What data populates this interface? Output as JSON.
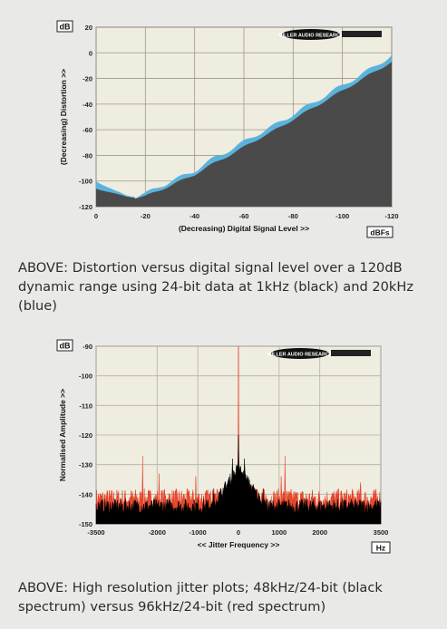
{
  "chart_data": [
    {
      "type": "area",
      "xlabel": "(Decreasing) Digital Signal Level >>",
      "ylabel": "(Decreasing) Distortion >>",
      "y_unit": "dB",
      "x_unit": "dBFs",
      "xlim": [
        0,
        -120
      ],
      "ylim": [
        -120,
        20
      ],
      "x_ticks": [
        "0",
        "-20",
        "-40",
        "-60",
        "-80",
        "-100",
        "-120"
      ],
      "y_ticks": [
        "20",
        "0",
        "-20",
        "-40",
        "-60",
        "-80",
        "-100",
        "-120"
      ],
      "logo_text": "MILLER AUDIO RESEARCH",
      "grid": true,
      "series": [
        {
          "color": "#5bb3dc",
          "x": [
            0,
            -4,
            -8,
            -12,
            -16,
            -20,
            -26,
            -32,
            -40,
            -48,
            -56,
            -64,
            -72,
            -80,
            -88,
            -96,
            -104,
            -112,
            -120
          ],
          "y": [
            -100,
            -104,
            -108,
            -111,
            -112,
            -110,
            -104,
            -99,
            -92,
            -82,
            -74,
            -65,
            -57,
            -48,
            -39,
            -30,
            -21,
            -12,
            -2
          ]
        },
        {
          "color": "#4a4a4a",
          "x": [
            0,
            -4,
            -8,
            -12,
            -16,
            -20,
            -26,
            -32,
            -40,
            -48,
            -56,
            -64,
            -72,
            -80,
            -88,
            -96,
            -104,
            -112,
            -120
          ],
          "y": [
            -106,
            -108,
            -110,
            -112,
            -113,
            -112,
            -107,
            -102,
            -95,
            -86,
            -78,
            -69,
            -61,
            -52,
            -43,
            -34,
            -25,
            -16,
            -7
          ]
        }
      ]
    },
    {
      "type": "line",
      "xlabel": "<< Jitter Frequency >>",
      "ylabel": "Normalised Amplitude >>",
      "y_unit": "dB",
      "x_unit": "Hz",
      "xlim": [
        -3500,
        3500
      ],
      "ylim": [
        -150,
        -90
      ],
      "x_ticks": [
        "-3500",
        "-2000",
        "-1000",
        "0",
        "1000",
        "2000",
        "3500"
      ],
      "y_ticks": [
        "-90",
        "-100",
        "-110",
        "-120",
        "-130",
        "-140",
        "-150"
      ],
      "logo_text": "MILLER AUDIO RESEARCH",
      "grid": true,
      "series": [
        {
          "color": "#e63a1e",
          "noise_floor_db": -143,
          "peaks": [
            {
              "x": 0,
              "y": -90
            },
            {
              "x": -2350,
              "y": -127
            },
            {
              "x": -1950,
              "y": -133
            },
            {
              "x": -1050,
              "y": -134
            },
            {
              "x": 1050,
              "y": -134
            },
            {
              "x": 1150,
              "y": -127
            },
            {
              "x": 3000,
              "y": -136
            }
          ]
        },
        {
          "color": "#000000",
          "noise_floor_db": -145,
          "peaks": [
            {
              "x": 0,
              "y": -120
            },
            {
              "x": -150,
              "y": -128
            },
            {
              "x": 150,
              "y": -128
            },
            {
              "x": 600,
              "y": -138
            },
            {
              "x": -600,
              "y": -138
            }
          ]
        }
      ]
    }
  ],
  "captions": {
    "chart1": "ABOVE: Distortion versus digital signal level over a 120dB dynamic range using 24-bit data at 1kHz (black) and 20kHz (blue)",
    "chart2": "ABOVE: High resolution jitter plots; 48kHz/24-bit (black spectrum) versus 96kHz/24-bit (red spectrum)"
  }
}
